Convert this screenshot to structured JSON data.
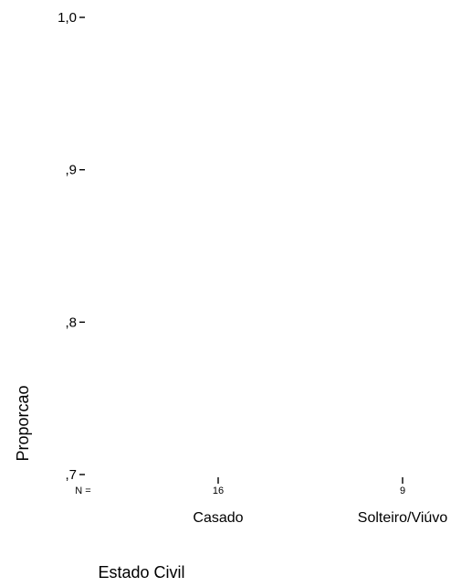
{
  "chart_data": {
    "type": "box",
    "title": "",
    "xlabel": "Estado Civil",
    "ylabel": "Proporcao",
    "ylim": [
      0.7,
      1.0
    ],
    "y_ticks": [
      {
        "value": 1.0,
        "label": "1,0"
      },
      {
        "value": 0.9,
        "label": ",9"
      },
      {
        "value": 0.8,
        "label": ",8"
      },
      {
        "value": 0.7,
        "label": ",7"
      }
    ],
    "n_prefix": "N =",
    "categories": [
      "Casado",
      "Solteiro/Viúvo"
    ],
    "n_values": [
      "16",
      "9"
    ],
    "grid": false,
    "legend": "none"
  }
}
